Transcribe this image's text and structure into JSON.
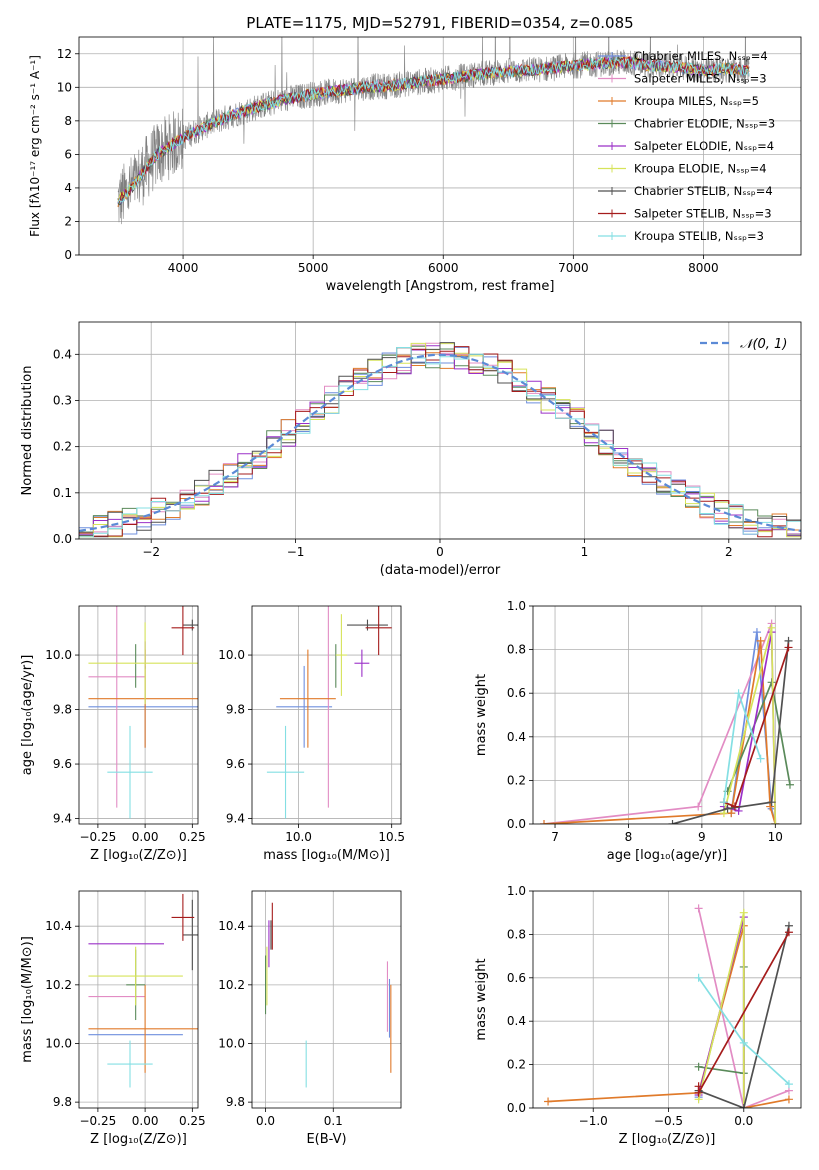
{
  "figure_title": "PLATE=1175, MJD=52791, FIBERID=0354, z=0.085",
  "colors": {
    "chabrier_miles": "#6f8fde",
    "salpeter_miles": "#e28cc4",
    "kroupa_miles": "#e07a2a",
    "chabrier_elodie": "#5a8a5a",
    "salpeter_elodie": "#9b30c8",
    "kroupa_elodie": "#d6e35a",
    "chabrier_stelib": "#505050",
    "salpeter_stelib": "#a51c1c",
    "kroupa_stelib": "#84dfe3",
    "data": "#808080",
    "grid": "#b0b0b0",
    "normal": "#5b8ad6"
  },
  "chart_data": [
    {
      "id": "spectrum",
      "type": "line",
      "xlabel": "wavelength [Angstrom, rest frame]",
      "ylabel": "Flux [fλ10⁻¹⁷ erg cm⁻² s⁻¹ A⁻¹]",
      "xlim": [
        3200,
        8750
      ],
      "ylim": [
        0,
        13
      ],
      "xticks": [
        "4000",
        "5000",
        "6000",
        "7000",
        "8000"
      ],
      "yticks": [
        "0",
        "2",
        "4",
        "6",
        "8",
        "10",
        "12"
      ],
      "legend": [
        "Chabrier MILES, Nₛₛₚ=4",
        "Salpeter MILES, Nₛₛₚ=3",
        "Kroupa MILES, Nₛₛₚ=5",
        "Chabrier ELODIE, Nₛₛₚ=3",
        "Salpeter ELODIE, Nₛₛₚ=4",
        "Kroupa ELODIE, Nₛₛₚ=4",
        "Chabrier STELIB, Nₛₛₚ=4",
        "Salpeter STELIB, Nₛₛₚ=3",
        "Kroupa STELIB, Nₛₛₚ=3"
      ],
      "legend_placement": "right",
      "continuum": {
        "x": [
          3500,
          3600,
          3700,
          3800,
          3900,
          4000,
          4200,
          4400,
          4600,
          4800,
          5000,
          5200,
          5400,
          5600,
          5800,
          6000,
          6200,
          6400,
          6600,
          6800,
          7000,
          7200,
          7400,
          7600,
          7800,
          8000,
          8200,
          8300
        ],
        "y": [
          3.2,
          4.0,
          5.0,
          6.0,
          6.5,
          7.0,
          7.8,
          8.4,
          8.9,
          9.3,
          9.6,
          9.8,
          10.0,
          10.1,
          10.3,
          10.5,
          10.7,
          10.9,
          11.0,
          11.1,
          11.3,
          11.4,
          11.5,
          11.3,
          11.2,
          11.0,
          11.1,
          11.0
        ]
      }
    },
    {
      "id": "residuals",
      "type": "histogram",
      "xlabel": "(data-model)/error",
      "ylabel": "Normed distribution",
      "xlim": [
        -2.5,
        2.5
      ],
      "ylim": [
        0,
        0.47
      ],
      "xticks": [
        "−2",
        "−1",
        "0",
        "1",
        "2"
      ],
      "yticks": [
        "0.0",
        "0.1",
        "0.2",
        "0.3",
        "0.4"
      ],
      "legend": [
        "𝒩(0, 1)"
      ],
      "bin_width": 0.1
    },
    {
      "id": "age_vs_Z",
      "type": "errorbar",
      "xlabel": "Z [log₁₀(Z/Z⊙)]",
      "ylabel": "age  [log₁₀(age/yr)]",
      "xlim": [
        -0.35,
        0.28
      ],
      "ylim": [
        9.38,
        10.18
      ],
      "xticks": [
        "−0.25",
        "0.00",
        "0.25"
      ],
      "yticks": [
        "9.4",
        "9.6",
        "9.8",
        "10.0"
      ],
      "points": [
        {
          "s": "chabrier_miles",
          "x": 0.0,
          "xerr": 0.3,
          "y": 9.81,
          "yerr": 0.15
        },
        {
          "s": "salpeter_miles",
          "x": -0.15,
          "xerr": 0.15,
          "y": 9.92,
          "yerr": 0.48
        },
        {
          "s": "kroupa_miles",
          "x": 0.0,
          "xerr": 0.3,
          "y": 9.84,
          "yerr": 0.18
        },
        {
          "s": "chabrier_elodie",
          "x": -0.05,
          "xerr": 0.0,
          "y": 9.96,
          "yerr": 0.08
        },
        {
          "s": "salpeter_elodie",
          "x": 0.0,
          "xerr": 0.0,
          "y": 10.0,
          "yerr": 0.05
        },
        {
          "s": "kroupa_elodie",
          "x": 0.0,
          "xerr": 0.3,
          "y": 9.97,
          "yerr": 0.15
        },
        {
          "s": "chabrier_stelib",
          "x": 0.25,
          "xerr": 0.05,
          "y": 10.11,
          "yerr": 0.02
        },
        {
          "s": "salpeter_stelib",
          "x": 0.2,
          "xerr": 0.06,
          "y": 10.1,
          "yerr": 0.1
        },
        {
          "s": "kroupa_stelib",
          "x": -0.08,
          "xerr": 0.12,
          "y": 9.57,
          "yerr": 0.17
        }
      ]
    },
    {
      "id": "age_vs_mass",
      "type": "errorbar",
      "xlabel": "mass [log₁₀(M/M⊙)]",
      "ylabel": "",
      "xlim": [
        9.75,
        10.55
      ],
      "ylim": [
        9.38,
        10.18
      ],
      "xticks": [
        "10.0",
        "10.5"
      ],
      "yticks": [
        "9.4",
        "9.6",
        "9.8",
        "10.0"
      ],
      "points": [
        {
          "s": "chabrier_miles",
          "x": 10.03,
          "xerr": 0.15,
          "y": 9.81,
          "yerr": 0.15
        },
        {
          "s": "salpeter_miles",
          "x": 10.16,
          "xerr": 0.0,
          "y": 9.92,
          "yerr": 0.48
        },
        {
          "s": "kroupa_miles",
          "x": 10.05,
          "xerr": 0.15,
          "y": 9.84,
          "yerr": 0.18
        },
        {
          "s": "chabrier_elodie",
          "x": 10.2,
          "xerr": 0.0,
          "y": 9.96,
          "yerr": 0.08
        },
        {
          "s": "salpeter_elodie",
          "x": 10.34,
          "xerr": 0.04,
          "y": 9.97,
          "yerr": 0.05
        },
        {
          "s": "kroupa_elodie",
          "x": 10.23,
          "xerr": 0.03,
          "y": 10.0,
          "yerr": 0.15
        },
        {
          "s": "chabrier_stelib",
          "x": 10.37,
          "xerr": 0.11,
          "y": 10.11,
          "yerr": 0.02
        },
        {
          "s": "salpeter_stelib",
          "x": 10.43,
          "xerr": 0.07,
          "y": 10.1,
          "yerr": 0.1
        },
        {
          "s": "kroupa_stelib",
          "x": 9.93,
          "xerr": 0.1,
          "y": 9.57,
          "yerr": 0.17
        }
      ]
    },
    {
      "id": "weight_vs_age",
      "type": "line",
      "xlabel": "age  [log₁₀(age/yr)]",
      "ylabel": "mass weight",
      "xlim": [
        6.7,
        10.35
      ],
      "ylim": [
        0,
        1.0
      ],
      "xticks": [
        "7",
        "8",
        "9",
        "10"
      ],
      "yticks": [
        "0.0",
        "0.2",
        "0.4",
        "0.6",
        "0.8",
        "1.0"
      ],
      "series": [
        {
          "s": "chabrier_miles",
          "x": [
            9.4,
            9.75,
            9.95,
            10.0
          ],
          "y": [
            0.05,
            0.88,
            0.07,
            0.0
          ]
        },
        {
          "s": "salpeter_miles",
          "x": [
            6.85,
            8.95,
            9.95
          ],
          "y": [
            0.0,
            0.08,
            0.92
          ]
        },
        {
          "s": "kroupa_miles",
          "x": [
            6.85,
            9.4,
            9.8,
            9.93,
            10.0
          ],
          "y": [
            0.0,
            0.05,
            0.84,
            0.08,
            0.0
          ]
        },
        {
          "s": "chabrier_elodie",
          "x": [
            9.35,
            9.95,
            10.2
          ],
          "y": [
            0.15,
            0.65,
            0.18
          ]
        },
        {
          "s": "salpeter_elodie",
          "x": [
            9.3,
            9.5,
            9.95,
            10.0
          ],
          "y": [
            0.08,
            0.06,
            0.88,
            0.0
          ]
        },
        {
          "s": "kroupa_elodie",
          "x": [
            9.3,
            9.95,
            10.0
          ],
          "y": [
            0.05,
            0.9,
            0.0
          ]
        },
        {
          "s": "chabrier_stelib",
          "x": [
            8.6,
            9.35,
            9.95,
            10.18
          ],
          "y": [
            0.0,
            0.07,
            0.1,
            0.84
          ]
        },
        {
          "s": "salpeter_stelib",
          "x": [
            9.3,
            9.45,
            10.18
          ],
          "y": [
            0.1,
            0.08,
            0.81
          ]
        },
        {
          "s": "kroupa_stelib",
          "x": [
            9.3,
            9.5,
            9.8
          ],
          "y": [
            0.1,
            0.6,
            0.3
          ]
        }
      ]
    },
    {
      "id": "mass_vs_Z",
      "type": "errorbar",
      "xlabel": "Z [log₁₀(Z/Z⊙)]",
      "ylabel": "mass [log₁₀(M/M⊙)]",
      "xlim": [
        -0.35,
        0.28
      ],
      "ylim": [
        9.78,
        10.52
      ],
      "xticks": [
        "−0.25",
        "0.00",
        "0.25"
      ],
      "yticks": [
        "9.8",
        "10.0",
        "10.2",
        "10.4"
      ],
      "points": [
        {
          "s": "chabrier_miles",
          "x": -0.05,
          "xerr": 0.25,
          "y": 10.03,
          "yerr": 0.0
        },
        {
          "s": "salpeter_miles",
          "x": -0.15,
          "xerr": 0.15,
          "y": 10.16,
          "yerr": 0.0
        },
        {
          "s": "kroupa_miles",
          "x": 0.0,
          "xerr": 0.3,
          "y": 10.05,
          "yerr": 0.15
        },
        {
          "s": "chabrier_elodie",
          "x": -0.05,
          "xerr": 0.05,
          "y": 10.2,
          "yerr": 0.12
        },
        {
          "s": "salpeter_elodie",
          "x": -0.1,
          "xerr": 0.2,
          "y": 10.34,
          "yerr": 0.0
        },
        {
          "s": "kroupa_elodie",
          "x": -0.05,
          "xerr": 0.25,
          "y": 10.23,
          "yerr": 0.1
        },
        {
          "s": "chabrier_stelib",
          "x": 0.25,
          "xerr": 0.05,
          "y": 10.37,
          "yerr": 0.12
        },
        {
          "s": "salpeter_stelib",
          "x": 0.2,
          "xerr": 0.06,
          "y": 10.43,
          "yerr": 0.08
        },
        {
          "s": "kroupa_stelib",
          "x": -0.08,
          "xerr": 0.12,
          "y": 9.93,
          "yerr": 0.08
        }
      ]
    },
    {
      "id": "mass_vs_ebv",
      "type": "errorbar",
      "xlabel": "E(B-V)",
      "ylabel": "",
      "xlim": [
        -0.02,
        0.2
      ],
      "ylim": [
        9.78,
        10.52
      ],
      "xticks": [
        "0.0",
        "0.1"
      ],
      "yticks": [
        "9.8",
        "10.0",
        "10.2",
        "10.4"
      ],
      "points": [
        {
          "s": "chabrier_miles",
          "x": 0.183,
          "xerr": 0.0,
          "y": 10.12,
          "yerr": 0.1
        },
        {
          "s": "salpeter_miles",
          "x": 0.18,
          "xerr": 0.0,
          "y": 10.16,
          "yerr": 0.12
        },
        {
          "s": "kroupa_miles",
          "x": 0.185,
          "xerr": 0.0,
          "y": 10.05,
          "yerr": 0.15
        },
        {
          "s": "chabrier_elodie",
          "x": 0.0,
          "xerr": 0.0,
          "y": 10.2,
          "yerr": 0.1
        },
        {
          "s": "salpeter_elodie",
          "x": 0.005,
          "xerr": 0.0,
          "y": 10.34,
          "yerr": 0.08
        },
        {
          "s": "kroupa_elodie",
          "x": 0.002,
          "xerr": 0.0,
          "y": 10.23,
          "yerr": 0.1
        },
        {
          "s": "chabrier_stelib",
          "x": 0.008,
          "xerr": 0.0,
          "y": 10.37,
          "yerr": 0.05
        },
        {
          "s": "salpeter_stelib",
          "x": 0.01,
          "xerr": 0.0,
          "y": 10.4,
          "yerr": 0.08
        },
        {
          "s": "kroupa_stelib",
          "x": 0.06,
          "xerr": 0.0,
          "y": 9.93,
          "yerr": 0.08
        }
      ]
    },
    {
      "id": "weight_vs_Z",
      "type": "line",
      "xlabel": "Z [log₁₀(Z/Z⊙)]",
      "ylabel": "mass weight",
      "xlim": [
        -1.4,
        0.38
      ],
      "ylim": [
        0,
        1.0
      ],
      "xticks": [
        "−1.0",
        "−0.5",
        "0.0"
      ],
      "yticks": [
        "0.0",
        "0.2",
        "0.4",
        "0.6",
        "0.8",
        "1.0"
      ],
      "series": [
        {
          "s": "chabrier_miles",
          "x": [
            -0.3,
            0.0,
            0.0
          ],
          "y": [
            0.05,
            0.88,
            0.0
          ]
        },
        {
          "s": "salpeter_miles",
          "x": [
            -0.3,
            0.0,
            0.3
          ],
          "y": [
            0.92,
            0.0,
            0.08
          ]
        },
        {
          "s": "kroupa_miles",
          "x": [
            -1.3,
            -0.3,
            0.0,
            0.0,
            0.3
          ],
          "y": [
            0.03,
            0.07,
            0.84,
            0.0,
            0.04
          ]
        },
        {
          "s": "chabrier_elodie",
          "x": [
            -0.3,
            0.0,
            0.0
          ],
          "y": [
            0.19,
            0.16,
            0.65
          ]
        },
        {
          "s": "salpeter_elodie",
          "x": [
            -0.3,
            0.0,
            0.0
          ],
          "y": [
            0.06,
            0.88,
            0.0
          ]
        },
        {
          "s": "kroupa_elodie",
          "x": [
            -0.3,
            0.0,
            0.0
          ],
          "y": [
            0.04,
            0.9,
            0.0
          ]
        },
        {
          "s": "chabrier_stelib",
          "x": [
            -0.3,
            0.0,
            0.3
          ],
          "y": [
            0.08,
            0.0,
            0.84
          ]
        },
        {
          "s": "salpeter_stelib",
          "x": [
            -0.3,
            -0.3,
            0.3
          ],
          "y": [
            0.1,
            0.07,
            0.81
          ]
        },
        {
          "s": "kroupa_stelib",
          "x": [
            -0.3,
            0.0,
            0.3
          ],
          "y": [
            0.6,
            0.3,
            0.11
          ]
        }
      ]
    }
  ]
}
